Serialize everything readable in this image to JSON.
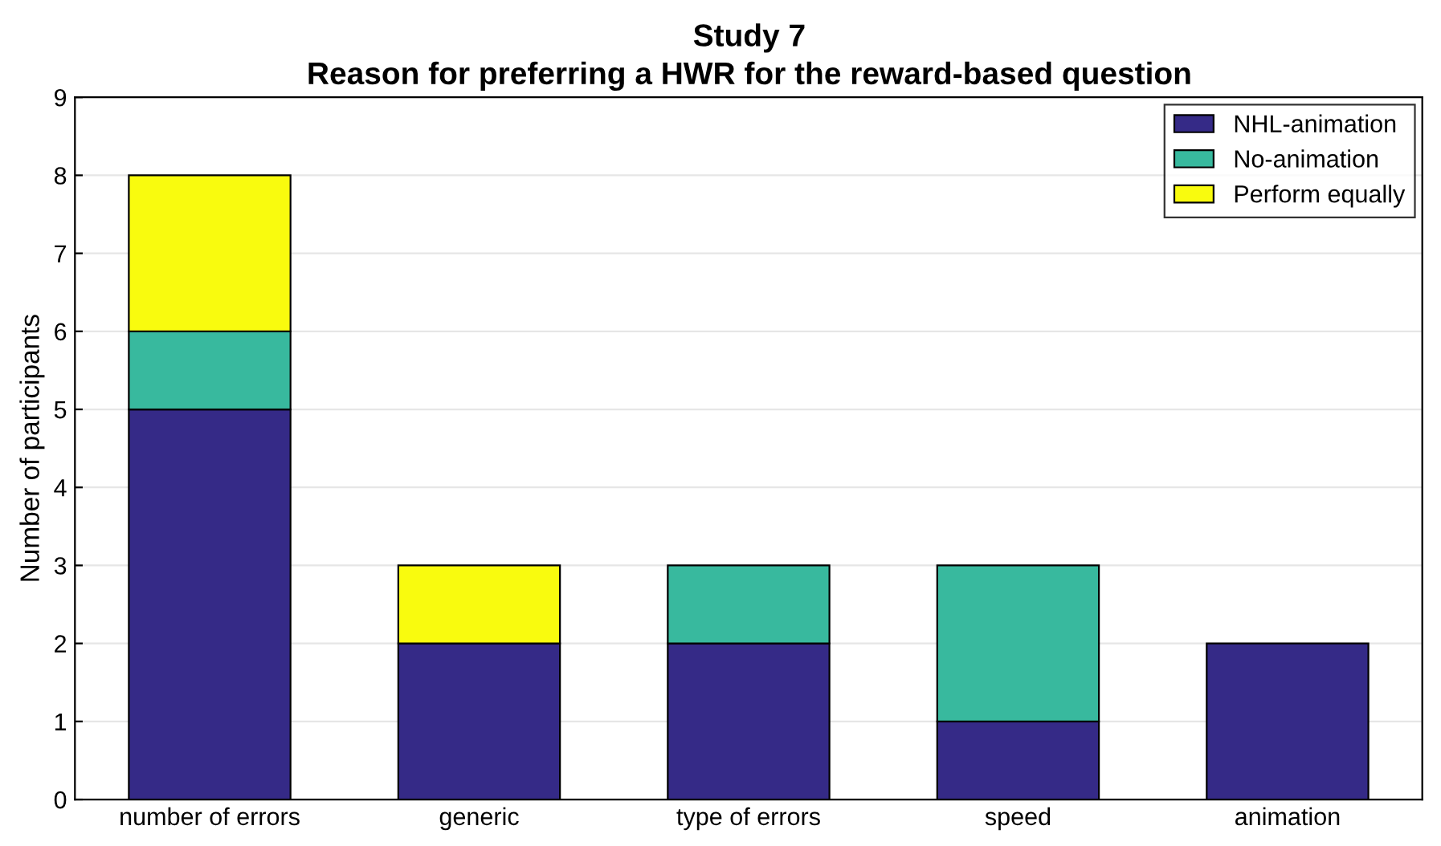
{
  "chart_data": {
    "type": "bar",
    "title": "Study 7",
    "subtitle": "Reason for preferring a HWR for the reward-based question",
    "ylabel": "Number of participants",
    "categories": [
      "number of errors",
      "generic",
      "type of errors",
      "speed",
      "animation"
    ],
    "stacked": true,
    "series": [
      {
        "name": "NHL-animation",
        "color": "#352a87",
        "values": [
          5,
          2,
          2,
          1,
          2
        ]
      },
      {
        "name": "No-animation",
        "color": "#38b99e",
        "values": [
          1,
          0,
          1,
          2,
          0
        ]
      },
      {
        "name": "Perform equally",
        "color": "#f9fb0e",
        "values": [
          2,
          1,
          0,
          0,
          0
        ]
      }
    ],
    "ylim": [
      0,
      9
    ],
    "yticks": [
      0,
      1,
      2,
      3,
      4,
      5,
      6,
      7,
      8,
      9
    ],
    "grid": "y",
    "legend": "top right"
  }
}
